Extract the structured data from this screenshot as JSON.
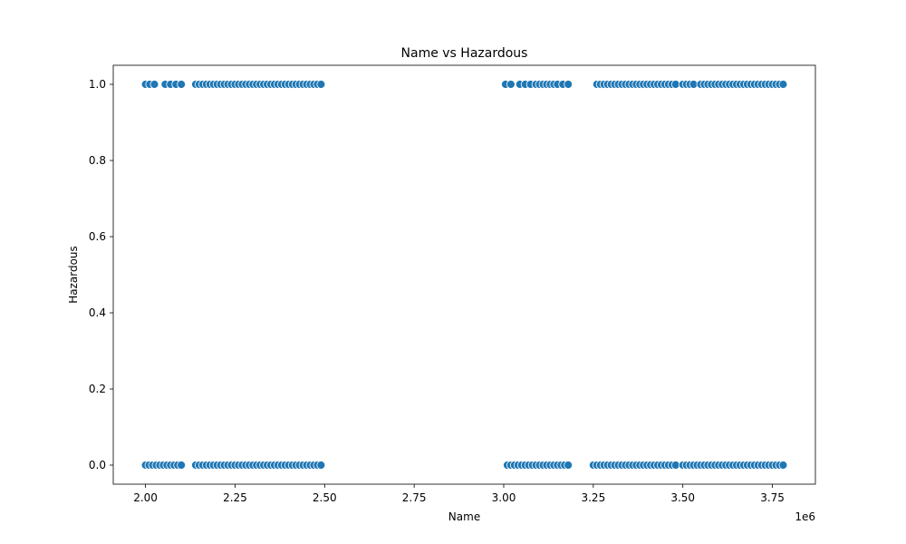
{
  "chart_data": {
    "type": "scatter",
    "title": "Name vs Hazardous",
    "xlabel": "Name",
    "ylabel": "Hazardous",
    "x_offset_label": "1e6",
    "xlim": [
      1.91,
      3.87
    ],
    "ylim": [
      -0.05,
      1.05
    ],
    "x_ticks": [
      2.0,
      2.25,
      2.5,
      2.75,
      3.0,
      3.25,
      3.5,
      3.75
    ],
    "x_tick_labels": [
      "2.00",
      "2.25",
      "2.50",
      "2.75",
      "3.00",
      "3.25",
      "3.50",
      "3.75"
    ],
    "y_ticks": [
      0.0,
      0.2,
      0.4,
      0.6,
      0.8,
      1.0
    ],
    "y_tick_labels": [
      "0.0",
      "0.2",
      "0.4",
      "0.6",
      "0.8",
      "1.0"
    ],
    "grid": false,
    "point_color": "#1f77b4",
    "series": [
      {
        "y": 1,
        "x": [
          2.0,
          2.012,
          2.025,
          2.055,
          2.07,
          2.085,
          2.1,
          2.14,
          2.15,
          2.16,
          2.17,
          2.18,
          2.19,
          2.2,
          2.21,
          2.22,
          2.23,
          2.24,
          2.25,
          2.26,
          2.27,
          2.28,
          2.29,
          2.3,
          2.31,
          2.32,
          2.33,
          2.34,
          2.35,
          2.36,
          2.37,
          2.38,
          2.39,
          2.4,
          2.41,
          2.42,
          2.43,
          2.44,
          2.45,
          2.46,
          2.47,
          2.48,
          2.49,
          3.005,
          3.02,
          3.045,
          3.06,
          3.075,
          3.09,
          3.1,
          3.11,
          3.12,
          3.13,
          3.14,
          3.15,
          3.165,
          3.18,
          3.26,
          3.27,
          3.28,
          3.29,
          3.3,
          3.31,
          3.32,
          3.33,
          3.34,
          3.35,
          3.36,
          3.37,
          3.38,
          3.39,
          3.4,
          3.41,
          3.42,
          3.43,
          3.44,
          3.45,
          3.46,
          3.47,
          3.48,
          3.5,
          3.51,
          3.52,
          3.53,
          3.55,
          3.56,
          3.57,
          3.58,
          3.59,
          3.6,
          3.61,
          3.62,
          3.63,
          3.64,
          3.65,
          3.66,
          3.67,
          3.68,
          3.69,
          3.7,
          3.71,
          3.72,
          3.73,
          3.74,
          3.75,
          3.76,
          3.77,
          3.78
        ]
      },
      {
        "y": 0,
        "x": [
          2.0,
          2.01,
          2.02,
          2.03,
          2.04,
          2.05,
          2.06,
          2.07,
          2.08,
          2.09,
          2.1,
          2.14,
          2.15,
          2.16,
          2.17,
          2.18,
          2.19,
          2.2,
          2.21,
          2.22,
          2.23,
          2.24,
          2.25,
          2.26,
          2.27,
          2.28,
          2.29,
          2.3,
          2.31,
          2.32,
          2.33,
          2.34,
          2.35,
          2.36,
          2.37,
          2.38,
          2.39,
          2.4,
          2.41,
          2.42,
          2.43,
          2.44,
          2.45,
          2.46,
          2.47,
          2.48,
          2.49,
          3.01,
          3.02,
          3.03,
          3.04,
          3.05,
          3.06,
          3.07,
          3.08,
          3.09,
          3.1,
          3.11,
          3.12,
          3.13,
          3.14,
          3.15,
          3.16,
          3.17,
          3.18,
          3.25,
          3.26,
          3.27,
          3.28,
          3.29,
          3.3,
          3.31,
          3.32,
          3.33,
          3.34,
          3.35,
          3.36,
          3.37,
          3.38,
          3.39,
          3.4,
          3.41,
          3.42,
          3.43,
          3.44,
          3.45,
          3.46,
          3.47,
          3.48,
          3.5,
          3.51,
          3.52,
          3.53,
          3.54,
          3.55,
          3.56,
          3.57,
          3.58,
          3.59,
          3.6,
          3.61,
          3.62,
          3.63,
          3.64,
          3.65,
          3.66,
          3.67,
          3.68,
          3.69,
          3.7,
          3.71,
          3.72,
          3.73,
          3.74,
          3.75,
          3.76,
          3.77,
          3.78
        ]
      }
    ]
  }
}
